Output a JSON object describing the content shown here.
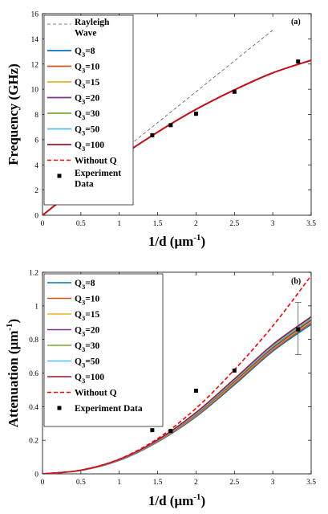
{
  "chart_data": [
    {
      "type": "line",
      "panel_label": "(a)",
      "xlabel": "1/d (μm",
      "xlabel_sup": "-1",
      "xlabel_end": ")",
      "ylabel": "Frequency (GHz)",
      "xlim": [
        0,
        3.5
      ],
      "ylim": [
        0,
        16
      ],
      "xticks": [
        0,
        0.5,
        1,
        1.5,
        2,
        2.5,
        3,
        3.5
      ],
      "xtick_labels": [
        "0",
        "0.5",
        "1",
        "1.5",
        "2",
        "2.5",
        "3",
        "3.5"
      ],
      "yticks": [
        0,
        2,
        4,
        6,
        8,
        10,
        12,
        14,
        16
      ],
      "ytick_labels": [
        "0",
        "2",
        "4",
        "6",
        "8",
        "10",
        "12",
        "14",
        "16"
      ],
      "legend_position": "top-left",
      "series": [
        {
          "name_lines": [
            "Rayleigh",
            "Wave"
          ],
          "color": "#555555",
          "style": "dashed",
          "width": 0.8,
          "x": [
            0,
            0.5,
            1,
            1.5,
            2,
            2.5,
            3
          ],
          "y": [
            0,
            2.45,
            4.9,
            7.35,
            9.8,
            12.25,
            14.7
          ]
        },
        {
          "name": "Q",
          "sub": "3",
          "suffix": "=8",
          "color": "#0072BD",
          "style": "solid",
          "width": 1.8,
          "x": [
            0,
            0.5,
            1,
            1.5,
            2,
            2.5,
            3,
            3.5
          ],
          "y": [
            0,
            2.4,
            4.6,
            6.6,
            8.4,
            9.95,
            11.3,
            12.3
          ]
        },
        {
          "name": "Q",
          "sub": "3",
          "suffix": "=10",
          "color": "#D95319",
          "style": "solid",
          "width": 1.8,
          "x": [
            0,
            0.5,
            1,
            1.5,
            2,
            2.5,
            3,
            3.5
          ],
          "y": [
            0,
            2.4,
            4.6,
            6.6,
            8.4,
            9.95,
            11.3,
            12.3
          ]
        },
        {
          "name": "Q",
          "sub": "3",
          "suffix": "=15",
          "color": "#EDB120",
          "style": "solid",
          "width": 1.8,
          "x": [
            0,
            0.5,
            1,
            1.5,
            2,
            2.5,
            3,
            3.5
          ],
          "y": [
            0,
            2.4,
            4.6,
            6.6,
            8.4,
            9.95,
            11.3,
            12.3
          ]
        },
        {
          "name": "Q",
          "sub": "3",
          "suffix": "=20",
          "color": "#7E2F8E",
          "style": "solid",
          "width": 1.8,
          "x": [
            0,
            0.5,
            1,
            1.5,
            2,
            2.5,
            3,
            3.5
          ],
          "y": [
            0,
            2.4,
            4.6,
            6.6,
            8.4,
            9.95,
            11.3,
            12.3
          ]
        },
        {
          "name": "Q",
          "sub": "3",
          "suffix": "=30",
          "color": "#77AC30",
          "style": "solid",
          "width": 1.8,
          "x": [
            0,
            0.5,
            1,
            1.5,
            2,
            2.5,
            3,
            3.5
          ],
          "y": [
            0,
            2.4,
            4.6,
            6.6,
            8.4,
            9.95,
            11.3,
            12.3
          ]
        },
        {
          "name": "Q",
          "sub": "3",
          "suffix": "=50",
          "color": "#4DBEEE",
          "style": "solid",
          "width": 1.8,
          "x": [
            0,
            0.5,
            1,
            1.5,
            2,
            2.5,
            3,
            3.5
          ],
          "y": [
            0,
            2.4,
            4.6,
            6.6,
            8.4,
            9.95,
            11.3,
            12.3
          ]
        },
        {
          "name": "Q",
          "sub": "3",
          "suffix": "=100",
          "color": "#A2142F",
          "style": "solid",
          "width": 1.8,
          "x": [
            0,
            0.5,
            1,
            1.5,
            2,
            2.5,
            3,
            3.5
          ],
          "y": [
            0,
            2.4,
            4.6,
            6.6,
            8.4,
            9.95,
            11.3,
            12.3
          ]
        },
        {
          "name": "Without Q",
          "color": "#FF0000",
          "style": "dashed",
          "width": 1.6,
          "x": [
            0,
            0.5,
            1,
            1.5,
            2,
            2.5,
            3,
            3.5
          ],
          "y": [
            0,
            2.4,
            4.6,
            6.6,
            8.4,
            9.95,
            11.3,
            12.3
          ]
        }
      ],
      "points": {
        "name_lines": [
          "Experiment",
          "Data"
        ],
        "color": "#000000",
        "x": [
          1.43,
          1.67,
          2.0,
          2.5,
          3.33
        ],
        "y": [
          6.35,
          7.15,
          8.05,
          9.8,
          12.2
        ]
      }
    },
    {
      "type": "line",
      "panel_label": "(b)",
      "xlabel": "1/d (μm",
      "xlabel_sup": "-1",
      "xlabel_end": ")",
      "ylabel": "Attenuation (μm",
      "ylabel_sup": "-1",
      "ylabel_end": ")",
      "xlim": [
        0,
        3.5
      ],
      "ylim": [
        0,
        1.2
      ],
      "xticks": [
        0,
        0.5,
        1,
        1.5,
        2,
        2.5,
        3,
        3.5
      ],
      "xtick_labels": [
        "0",
        "0.5",
        "1",
        "1.5",
        "2",
        "2.5",
        "3",
        "3.5"
      ],
      "yticks": [
        0,
        0.2,
        0.4,
        0.6,
        0.8,
        1,
        1.2
      ],
      "ytick_labels": [
        "0",
        "0.2",
        "0.4",
        "0.6",
        "0.8",
        "1",
        "1.2"
      ],
      "legend_position": "top-left",
      "series": [
        {
          "name": "Q",
          "sub": "3",
          "suffix": "=8",
          "color": "#0072BD",
          "style": "solid",
          "width": 1.6,
          "x": [
            0,
            0.5,
            1,
            1.5,
            2,
            2.5,
            3,
            3.5
          ],
          "y": [
            0,
            0.02,
            0.08,
            0.19,
            0.34,
            0.53,
            0.73,
            0.89
          ]
        },
        {
          "name": "Q",
          "sub": "3",
          "suffix": "=10",
          "color": "#D95319",
          "style": "solid",
          "width": 1.6,
          "x": [
            0,
            0.5,
            1,
            1.5,
            2,
            2.5,
            3,
            3.5
          ],
          "y": [
            0,
            0.021,
            0.082,
            0.192,
            0.345,
            0.537,
            0.737,
            0.9
          ]
        },
        {
          "name": "Q",
          "sub": "3",
          "suffix": "=15",
          "color": "#EDB120",
          "style": "solid",
          "width": 1.6,
          "x": [
            0,
            0.5,
            1,
            1.5,
            2,
            2.5,
            3,
            3.5
          ],
          "y": [
            0,
            0.021,
            0.083,
            0.194,
            0.35,
            0.545,
            0.745,
            0.91
          ]
        },
        {
          "name": "Q",
          "sub": "3",
          "suffix": "=20",
          "color": "#7E2F8E",
          "style": "solid",
          "width": 1.6,
          "x": [
            0,
            0.5,
            1,
            1.5,
            2,
            2.5,
            3,
            3.5
          ],
          "y": [
            0,
            0.021,
            0.084,
            0.196,
            0.353,
            0.55,
            0.75,
            0.915
          ]
        },
        {
          "name": "Q",
          "sub": "3",
          "suffix": "=30",
          "color": "#77AC30",
          "style": "solid",
          "width": 1.6,
          "x": [
            0,
            0.5,
            1,
            1.5,
            2,
            2.5,
            3,
            3.5
          ],
          "y": [
            0,
            0.021,
            0.085,
            0.198,
            0.357,
            0.555,
            0.757,
            0.922
          ]
        },
        {
          "name": "Q",
          "sub": "3",
          "suffix": "=50",
          "color": "#4DBEEE",
          "style": "solid",
          "width": 1.6,
          "x": [
            0,
            0.5,
            1,
            1.5,
            2,
            2.5,
            3,
            3.5
          ],
          "y": [
            0,
            0.021,
            0.085,
            0.2,
            0.36,
            0.56,
            0.762,
            0.928
          ]
        },
        {
          "name": "Q",
          "sub": "3",
          "suffix": "=100",
          "color": "#A2142F",
          "style": "solid",
          "width": 1.6,
          "x": [
            0,
            0.5,
            1,
            1.5,
            2,
            2.5,
            3,
            3.5
          ],
          "y": [
            0,
            0.022,
            0.086,
            0.202,
            0.365,
            0.565,
            0.77,
            0.935
          ]
        },
        {
          "name": "Without Q",
          "color": "#FF0000",
          "style": "dashed",
          "width": 1.6,
          "x": [
            0,
            0.5,
            1,
            1.5,
            2,
            2.5,
            3,
            3.5
          ],
          "y": [
            0,
            0.022,
            0.088,
            0.21,
            0.39,
            0.62,
            0.88,
            1.18
          ]
        }
      ],
      "points": {
        "name": "Experiment Data",
        "color": "#000000",
        "x": [
          1.43,
          1.67,
          2.0,
          2.5,
          3.33
        ],
        "y": [
          0.26,
          0.255,
          0.495,
          0.615,
          0.86
        ]
      },
      "error_bar": {
        "x": 3.33,
        "y_low": 0.71,
        "y_high": 1.02,
        "color": "#555555"
      }
    }
  ]
}
